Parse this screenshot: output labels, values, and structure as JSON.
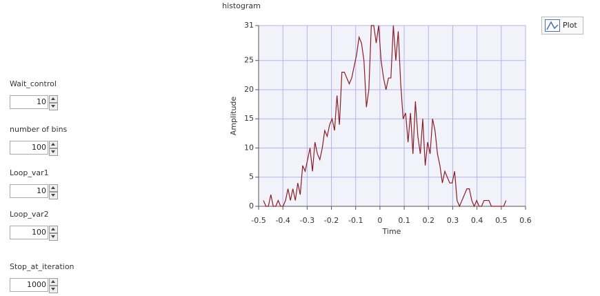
{
  "controls": [
    {
      "label": "Wait_control",
      "value": 10
    },
    {
      "label": "number of bins",
      "value": 100
    },
    {
      "label": "Loop_var1",
      "value": 10
    },
    {
      "label": "Loop_var2",
      "value": 100
    },
    {
      "label": "Stop_at_iteration",
      "value": 1000
    }
  ],
  "chart_data": {
    "type": "line",
    "title": "histogram",
    "x_label": "Time",
    "y_label": "Amplitude",
    "xlim": [
      -0.5,
      0.6
    ],
    "xticks": [
      -0.5,
      -0.4,
      -0.3,
      -0.2,
      -0.1,
      0,
      0.1,
      0.2,
      0.3,
      0.4,
      0.5,
      0.6
    ],
    "ylim": [
      0,
      31
    ],
    "yticks": [
      0,
      5,
      10,
      15,
      20,
      25,
      31
    ],
    "grid": true,
    "x": [
      -0.48,
      -0.4699,
      -0.4598,
      -0.4497,
      -0.4396,
      -0.4295,
      -0.4194,
      -0.4093,
      -0.3992,
      -0.3891,
      -0.379,
      -0.3689,
      -0.3588,
      -0.3487,
      -0.3386,
      -0.3285,
      -0.3184,
      -0.3083,
      -0.2982,
      -0.2881,
      -0.278,
      -0.2679,
      -0.2578,
      -0.2477,
      -0.2376,
      -0.2275,
      -0.2174,
      -0.2073,
      -0.1972,
      -0.1871,
      -0.177,
      -0.1669,
      -0.1568,
      -0.1467,
      -0.1366,
      -0.1265,
      -0.1164,
      -0.1063,
      -0.0962,
      -0.0861,
      -0.076,
      -0.0659,
      -0.0558,
      -0.0457,
      -0.0356,
      -0.0255,
      -0.0154,
      -0.0053,
      0.0048,
      0.0149,
      0.025,
      0.0351,
      0.0452,
      0.0553,
      0.0654,
      0.0755,
      0.0856,
      0.0957,
      0.1058,
      0.1159,
      0.126,
      0.1361,
      0.1462,
      0.1563,
      0.1664,
      0.1765,
      0.1866,
      0.1967,
      0.2068,
      0.2169,
      0.227,
      0.2371,
      0.2472,
      0.2573,
      0.2674,
      0.2775,
      0.2876,
      0.2977,
      0.3078,
      0.3179,
      0.328,
      0.3381,
      0.3482,
      0.3583,
      0.3684,
      0.3785,
      0.3886,
      0.3987,
      0.4088,
      0.4189,
      0.429,
      0.4391,
      0.4492,
      0.4593,
      0.4694,
      0.4795,
      0.4896,
      0.4997,
      0.5098,
      0.5199
    ],
    "series": [
      {
        "name": "Plot",
        "color": "#8b1c24",
        "values": [
          1,
          0,
          0,
          2,
          0,
          0,
          1,
          0,
          0,
          1,
          3,
          1,
          3,
          1,
          4,
          2,
          7,
          6,
          8,
          10,
          6,
          11,
          9,
          8,
          10,
          13,
          12,
          14,
          15,
          13,
          19,
          14,
          23,
          23,
          22,
          21,
          22,
          24,
          26,
          29,
          28,
          25,
          17,
          20,
          31,
          31,
          28,
          31,
          25,
          22,
          20,
          22,
          22,
          31,
          25,
          30,
          21,
          15,
          16,
          11,
          16,
          9,
          18,
          12,
          9,
          15,
          7,
          11,
          9,
          15,
          13,
          9,
          7,
          4,
          6,
          5,
          4,
          4,
          6,
          1,
          0,
          1,
          2,
          3,
          3,
          1,
          0,
          1,
          0,
          0,
          1,
          1,
          1,
          0,
          0,
          0,
          0,
          0,
          0,
          1
        ]
      }
    ]
  }
}
